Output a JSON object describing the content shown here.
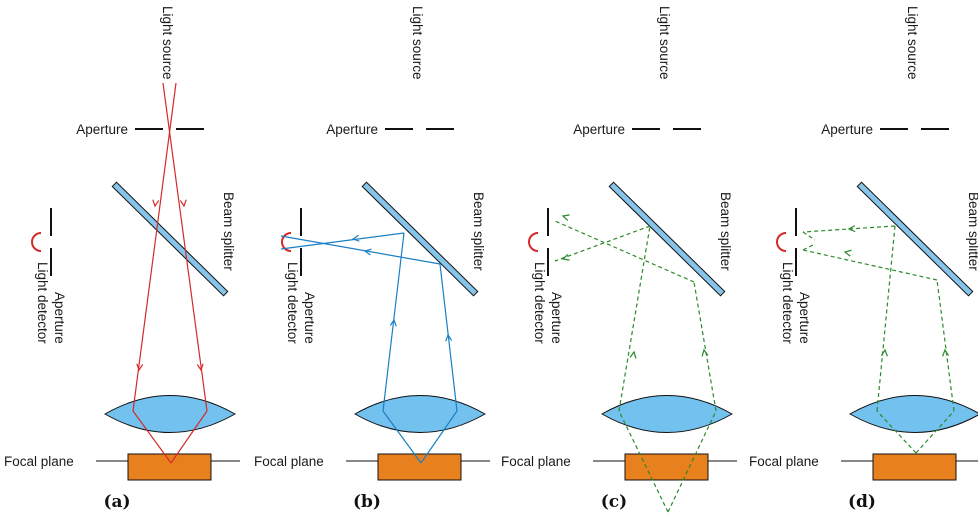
{
  "labels": {
    "light_source": "Light source",
    "aperture": "Aperture",
    "beam_splitter": "Beam splitter",
    "light_detector": "Light detector",
    "focal_plane": "Focal plane"
  },
  "panels": [
    {
      "id": "a",
      "label": "(a)"
    },
    {
      "id": "b",
      "label": "(b)"
    },
    {
      "id": "c",
      "label": "(c)"
    },
    {
      "id": "d",
      "label": "(d)"
    }
  ],
  "colors": {
    "illumination_ray": "#d42a2a",
    "in_focus_ray": "#1b7fc4",
    "out_of_focus_ray": "#2a8a2a",
    "lens_fill": "#73c1ee",
    "splitter_fill": "#86c4ea",
    "specimen_fill": "#e8801e",
    "detector": "#d42a2a",
    "line": "#111111"
  }
}
